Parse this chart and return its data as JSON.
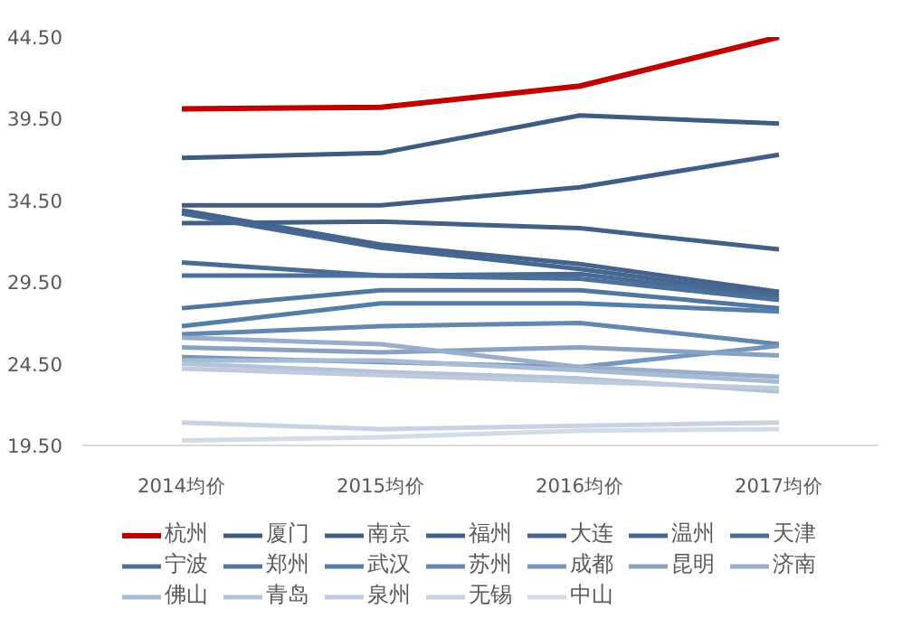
{
  "chart_data": {
    "type": "line",
    "categories": [
      "2014均价",
      "2015均价",
      "2016均价",
      "2017均价"
    ],
    "ylim": [
      19.5,
      44.5
    ],
    "yticks": [
      {
        "value": 19.5,
        "label": "19.50"
      },
      {
        "value": 24.5,
        "label": "24.50"
      },
      {
        "value": 29.5,
        "label": "29.50"
      },
      {
        "value": 34.5,
        "label": "34.50"
      },
      {
        "value": 39.5,
        "label": "39.50"
      },
      {
        "value": 44.5,
        "label": "44.50"
      }
    ],
    "grid": false,
    "legend": "bottom",
    "marker": "none",
    "line_style": "solid",
    "series": [
      {
        "name": "杭州",
        "color": "#c00000",
        "values": [
          40.1,
          40.2,
          41.5,
          44.5
        ]
      },
      {
        "name": "厦门",
        "color": "#3e5b80",
        "values": [
          37.1,
          37.4,
          39.7,
          39.2
        ]
      },
      {
        "name": "南京",
        "color": "#405e84",
        "values": [
          34.2,
          34.2,
          35.3,
          37.3
        ]
      },
      {
        "name": "福州",
        "color": "#426188",
        "values": [
          33.1,
          33.2,
          32.8,
          31.5
        ]
      },
      {
        "name": "大连",
        "color": "#44648c",
        "values": [
          33.9,
          31.8,
          30.6,
          28.9
        ]
      },
      {
        "name": "温州",
        "color": "#466890",
        "values": [
          33.7,
          31.6,
          30.3,
          28.7
        ]
      },
      {
        "name": "天津",
        "color": "#496c95",
        "values": [
          30.7,
          29.9,
          30.0,
          28.5
        ]
      },
      {
        "name": "宁波",
        "color": "#4c719b",
        "values": [
          29.9,
          29.9,
          29.7,
          28.4
        ]
      },
      {
        "name": "郑州",
        "color": "#5077a2",
        "values": [
          27.9,
          29.0,
          29.0,
          27.9
        ]
      },
      {
        "name": "武汉",
        "color": "#547eaa",
        "values": [
          26.8,
          28.2,
          28.2,
          27.7
        ]
      },
      {
        "name": "苏州",
        "color": "#6487b0",
        "values": [
          26.3,
          26.8,
          27.0,
          25.7
        ]
      },
      {
        "name": "成都",
        "color": "#7597bd",
        "values": [
          24.9,
          24.6,
          24.3,
          25.6
        ]
      },
      {
        "name": "昆明",
        "color": "#8aa2c2",
        "values": [
          25.5,
          25.2,
          25.5,
          25.0
        ]
      },
      {
        "name": "济南",
        "color": "#98aecb",
        "values": [
          26.1,
          25.7,
          24.3,
          23.7
        ]
      },
      {
        "name": "佛山",
        "color": "#a8bbd4",
        "values": [
          24.7,
          24.7,
          24.1,
          23.4
        ]
      },
      {
        "name": "青岛",
        "color": "#b3c3d9",
        "values": [
          24.5,
          24.0,
          23.6,
          22.8
        ]
      },
      {
        "name": "泉州",
        "color": "#bfcadd",
        "values": [
          24.2,
          23.8,
          23.4,
          23.0
        ]
      },
      {
        "name": "无锡",
        "color": "#c9d2e3",
        "values": [
          20.9,
          20.5,
          20.7,
          20.9
        ]
      },
      {
        "name": "中山",
        "color": "#d3dae8",
        "values": [
          19.8,
          20.0,
          20.4,
          20.5
        ]
      }
    ]
  }
}
